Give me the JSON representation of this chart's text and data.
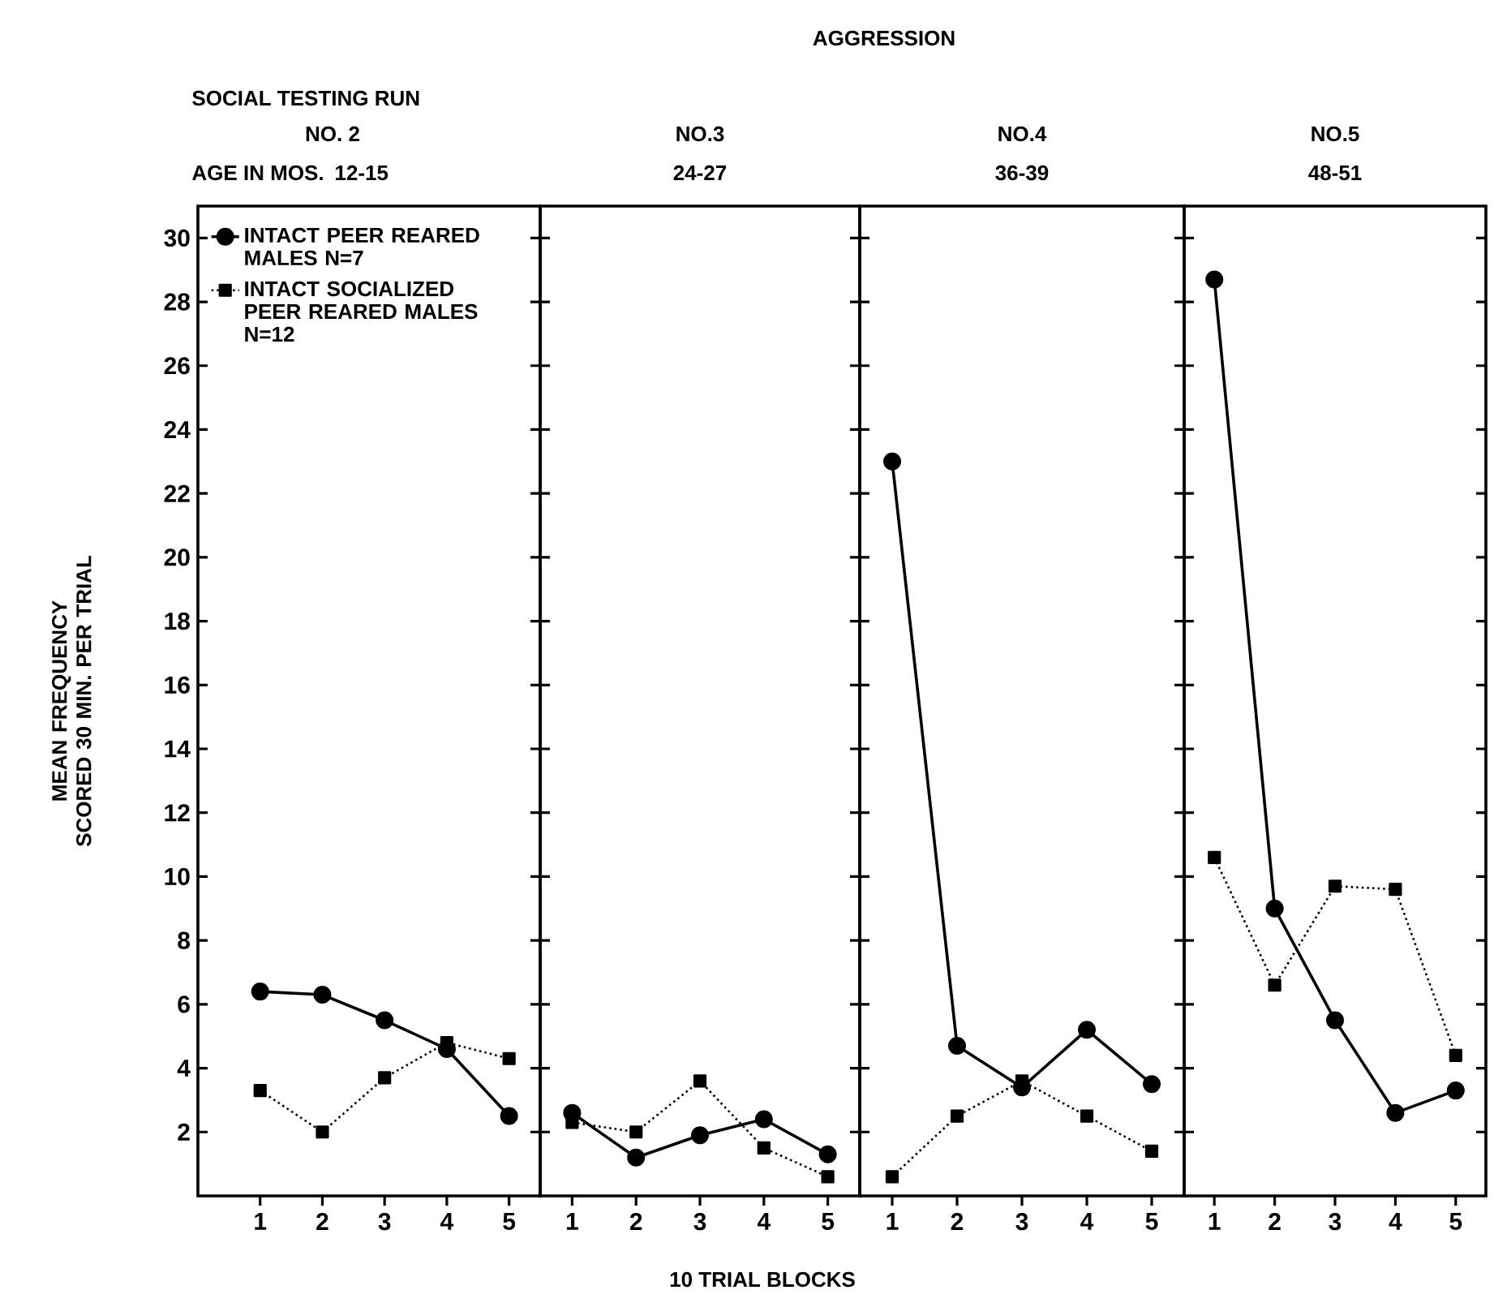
{
  "chart_data": [
    {
      "type": "line",
      "title": "NO. 2",
      "subtitle": "12-15",
      "ylabel": "MEAN FREQUENCY SCORED 30 MIN. PER TRIAL",
      "annotations": [
        "AGGRESSION",
        "SOCIAL TESTING RUN",
        "AGE IN MOS.",
        "10 TRIAL BLOCKS"
      ],
      "x": [
        1,
        2,
        3,
        4,
        5
      ],
      "xlim": [
        0,
        5.5
      ],
      "xticks": [
        1,
        2,
        3,
        4,
        5
      ],
      "ylim": [
        0,
        31
      ],
      "yticks": [
        2,
        4,
        6,
        8,
        10,
        12,
        14,
        16,
        18,
        20,
        22,
        24,
        26,
        28,
        30
      ],
      "legend": "top left",
      "series": [
        {
          "name": "INTACT PEER REARED MALES N=7",
          "color": "#000000",
          "marker": "circle",
          "line_style": "solid",
          "values": [
            6.4,
            6.3,
            5.5,
            4.6,
            2.5
          ]
        },
        {
          "name": "INTACT SOCIALIZED PEER REARED MALES N=12",
          "color": "#000000",
          "marker": "square",
          "line_style": "dotted",
          "values": [
            3.3,
            2.0,
            3.7,
            4.8,
            4.3
          ]
        }
      ]
    },
    {
      "type": "line",
      "title": "NO.3",
      "subtitle": "24-27",
      "x": [
        1,
        2,
        3,
        4,
        5
      ],
      "xlim": [
        0.5,
        5.5
      ],
      "xticks": [
        1,
        2,
        3,
        4,
        5
      ],
      "ylim": [
        0,
        31
      ],
      "yticks": [
        2,
        4,
        6,
        8,
        10,
        12,
        14,
        16,
        18,
        20,
        22,
        24,
        26,
        28,
        30
      ],
      "tick_labels": "x",
      "series": [
        {
          "color": "#000000",
          "marker": "circle",
          "line_style": "solid",
          "values": [
            2.6,
            1.2,
            1.9,
            2.4,
            1.3
          ]
        },
        {
          "color": "#000000",
          "marker": "square",
          "line_style": "dotted",
          "values": [
            2.3,
            2.0,
            3.6,
            1.5,
            0.6
          ]
        }
      ]
    },
    {
      "type": "line",
      "title": "NO.4",
      "subtitle": "36-39",
      "x": [
        1,
        2,
        3,
        4,
        5
      ],
      "xlim": [
        0.5,
        5.5
      ],
      "xticks": [
        1,
        2,
        3,
        4,
        5
      ],
      "ylim": [
        0,
        31
      ],
      "yticks": [
        2,
        4,
        6,
        8,
        10,
        12,
        14,
        16,
        18,
        20,
        22,
        24,
        26,
        28,
        30
      ],
      "tick_labels": "x",
      "series": [
        {
          "color": "#000000",
          "marker": "circle",
          "line_style": "solid",
          "values": [
            23.0,
            4.7,
            3.4,
            5.2,
            3.5
          ]
        },
        {
          "color": "#000000",
          "marker": "square",
          "line_style": "dotted",
          "values": [
            0.6,
            2.5,
            3.6,
            2.5,
            1.4
          ]
        }
      ]
    },
    {
      "type": "line",
      "title": "NO.5",
      "subtitle": "48-51",
      "x": [
        1,
        2,
        3,
        4,
        5
      ],
      "xlim": [
        0.5,
        5.5
      ],
      "xticks": [
        1,
        2,
        3,
        4,
        5
      ],
      "ylim": [
        0,
        31
      ],
      "yticks": [
        2,
        4,
        6,
        8,
        10,
        12,
        14,
        16,
        18,
        20,
        22,
        24,
        26,
        28,
        30
      ],
      "tick_labels": "x",
      "series": [
        {
          "color": "#000000",
          "marker": "circle",
          "line_style": "solid",
          "values": [
            28.7,
            9.0,
            5.5,
            2.6,
            3.3
          ]
        },
        {
          "color": "#000000",
          "marker": "square",
          "line_style": "dotted",
          "values": [
            10.6,
            6.6,
            9.7,
            9.6,
            4.4
          ]
        }
      ]
    }
  ]
}
